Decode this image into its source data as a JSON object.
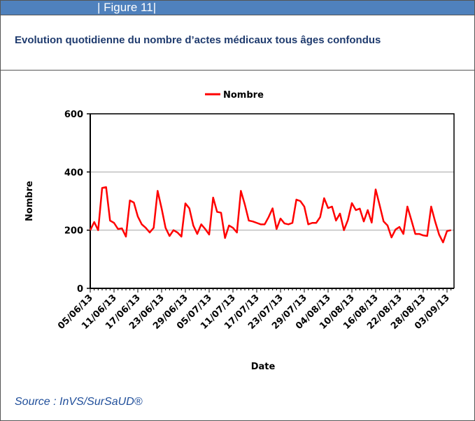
{
  "figure_label": "| Figure 11|",
  "title": "Evolution quotidienne du nombre d’actes médicaux tous âges confondus",
  "source": "Source : InVS/SurSaUD®",
  "chart_data": {
    "type": "line",
    "x_label": "Date",
    "y_label": "Nombre",
    "categories": [
      "05/06/13",
      null,
      null,
      null,
      null,
      null,
      "11/06/13",
      null,
      null,
      null,
      null,
      null,
      "17/06/13",
      null,
      null,
      null,
      null,
      null,
      "23/06/13",
      null,
      null,
      null,
      null,
      null,
      "29/06/13",
      null,
      null,
      null,
      null,
      null,
      "05/07/13",
      null,
      null,
      null,
      null,
      null,
      "11/07/13",
      null,
      null,
      null,
      null,
      null,
      "17/07/13",
      null,
      null,
      null,
      null,
      null,
      "23/07/13",
      null,
      null,
      null,
      null,
      null,
      "29/07/13",
      null,
      null,
      null,
      null,
      null,
      "04/08/13",
      null,
      null,
      null,
      null,
      null,
      "10/08/13",
      null,
      null,
      null,
      null,
      null,
      "16/08/13",
      null,
      null,
      null,
      null,
      null,
      "22/08/13",
      null,
      null,
      null,
      null,
      null,
      "28/08/13",
      null,
      null,
      null,
      null,
      null,
      "03/09/13",
      null
    ],
    "series": [
      {
        "name": "Nombre",
        "color": "#ff0000",
        "values": [
          200,
          228,
          200,
          345,
          348,
          233,
          225,
          204,
          206,
          178,
          302,
          295,
          247,
          220,
          208,
          192,
          208,
          335,
          275,
          208,
          180,
          200,
          192,
          178,
          292,
          275,
          216,
          187,
          220,
          204,
          185,
          312,
          263,
          260,
          173,
          216,
          208,
          192,
          335,
          288,
          233,
          230,
          225,
          220,
          220,
          245,
          275,
          204,
          240,
          223,
          220,
          225,
          305,
          300,
          281,
          220,
          225,
          225,
          245,
          310,
          276,
          281,
          233,
          257,
          200,
          235,
          293,
          269,
          274,
          230,
          269,
          226,
          340,
          286,
          230,
          216,
          175,
          202,
          211,
          187,
          281,
          235,
          187,
          187,
          182,
          180,
          281,
          230,
          185,
          158,
          197,
          200
        ]
      }
    ],
    "ylim": [
      0,
      600
    ],
    "yticks": [
      0,
      200,
      400,
      600
    ],
    "grid": true,
    "legend": "top"
  }
}
